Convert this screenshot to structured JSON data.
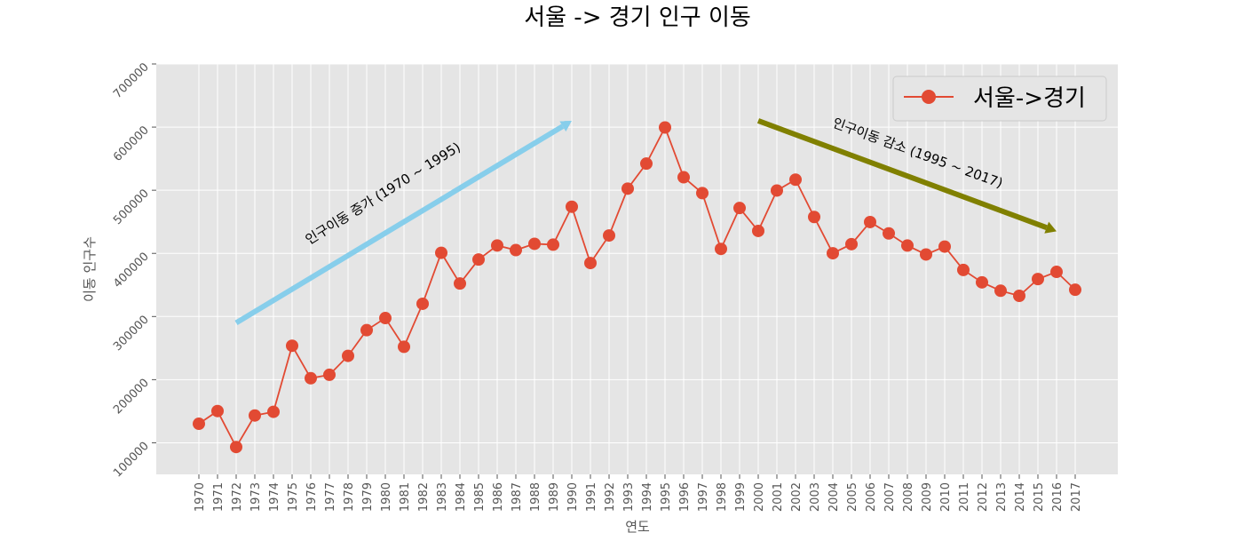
{
  "chart_data": {
    "type": "line",
    "title": "서울 -> 경기 인구 이동",
    "xlabel": "연도",
    "ylabel": "이동 인구수",
    "ylim": [
      50000,
      700000
    ],
    "yticks": [
      100000,
      200000,
      300000,
      400000,
      500000,
      600000,
      700000
    ],
    "grid": true,
    "legend_position": "top-right",
    "x": [
      "1970",
      "1971",
      "1972",
      "1973",
      "1974",
      "1975",
      "1976",
      "1977",
      "1978",
      "1979",
      "1980",
      "1981",
      "1982",
      "1983",
      "1984",
      "1985",
      "1986",
      "1987",
      "1988",
      "1989",
      "1990",
      "1991",
      "1992",
      "1993",
      "1994",
      "1995",
      "1996",
      "1997",
      "1998",
      "1999",
      "2000",
      "2001",
      "2002",
      "2003",
      "2004",
      "2005",
      "2006",
      "2007",
      "2008",
      "2009",
      "2010",
      "2011",
      "2012",
      "2013",
      "2014",
      "2015",
      "2016",
      "2017"
    ],
    "series": [
      {
        "name": "서울->경기",
        "color": "#e24a33",
        "values": [
          130149,
          150313,
          93333,
          143234,
          149045,
          253705,
          202276,
          207722,
          237684,
          278411,
          297539,
          252073,
          320174,
          400875,
          352238,
          390265,
          412535,
          405220,
          415174,
          413834,
          473889,
          384714,
          428344,
          502584,
          542204,
          599411,
          520566,
          495454,
          407050,
          471841,
          435573,
          499575,
          516765,
          457656,
          400206,
          414621,
          449632,
          431637,
          412408,
          398282,
          410735,
          373771,
          354135,
          340801,
          332785,
          359337,
          370760,
          342433
        ]
      }
    ],
    "annotations": [
      {
        "text": "인구이동 증가 (1970 ~ 1995)",
        "color": "#000000"
      },
      {
        "text": "인구이동 감소 (1995 ~ 2017)",
        "color": "#000000"
      }
    ],
    "arrows": [
      {
        "from": [
          "1972",
          290000
        ],
        "to": [
          "1990",
          610000
        ],
        "color": "#87ceeb"
      },
      {
        "from": [
          "2000",
          610000
        ],
        "to": [
          "2016",
          435000
        ],
        "color": "#808000"
      }
    ],
    "plot_background": "#e5e5e5",
    "grid_color": "#ffffff"
  }
}
